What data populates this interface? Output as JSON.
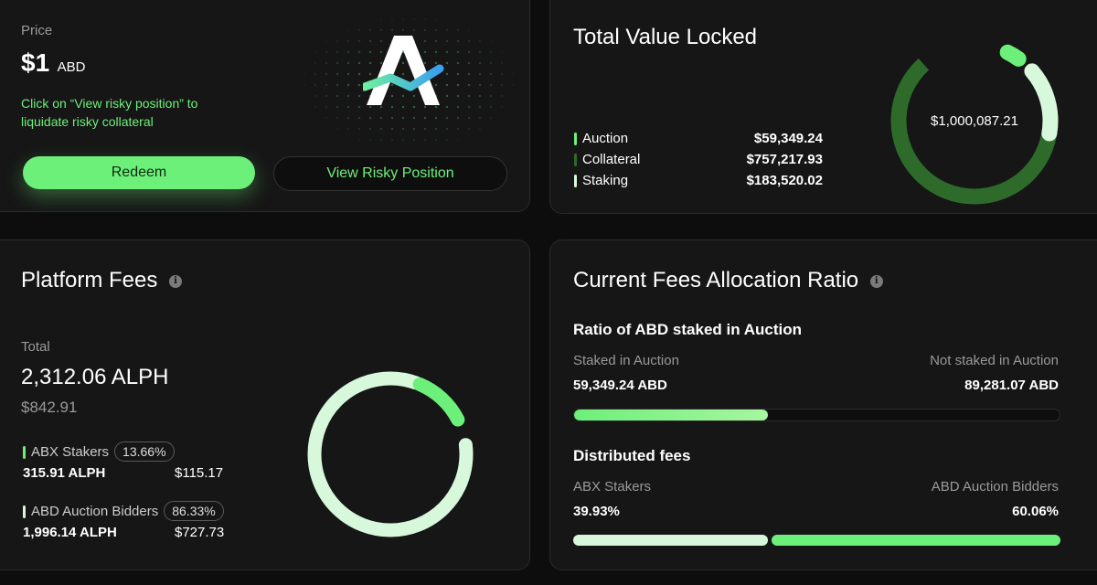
{
  "price_card": {
    "label": "Price",
    "value": "$1",
    "unit": "ABD",
    "hint": "Click on “View risky position” to liquidate risky collateral",
    "redeem_label": "Redeem",
    "view_risky_label": "View Risky Position",
    "logo_letter": "A"
  },
  "tvl": {
    "title": "Total Value Locked",
    "total": "$1,000,087.21",
    "items": [
      {
        "label": "Auction",
        "value": "$59,349.24",
        "color": "#6df07a"
      },
      {
        "label": "Collateral",
        "value": "$757,217.93",
        "color": "#2e6b2a"
      },
      {
        "label": "Staking",
        "value": "$183,520.02",
        "color": "#d8f8dc"
      }
    ]
  },
  "fees": {
    "title": "Platform Fees",
    "total_label": "Total",
    "total_value": "2,312.06 ALPH",
    "total_usd": "$842.91",
    "groups": [
      {
        "label": "ABX Stakers",
        "pct": "13.66%",
        "alph": "315.91 ALPH",
        "usd": "$115.17",
        "color": "#6df07a"
      },
      {
        "label": "ABD Auction Bidders",
        "pct": "86.33%",
        "alph": "1,996.14 ALPH",
        "usd": "$727.73",
        "color": "#d8f8dc"
      }
    ]
  },
  "allocation": {
    "title": "Current Fees Allocation Ratio",
    "ratio_title": "Ratio of ABD staked in Auction",
    "staked_label": "Staked in Auction",
    "staked_value": "59,349.24 ABD",
    "not_staked_label": "Not staked in Auction",
    "not_staked_value": "89,281.07 ABD",
    "staked_fraction": 0.399,
    "dist_title": "Distributed fees",
    "abx_label": "ABX Stakers",
    "abx_value": "39.93%",
    "abd_label": "ABD Auction Bidders",
    "abd_value": "60.06%",
    "abx_fraction": 0.3993
  },
  "colors": {
    "accent": "#6df07a",
    "dark_green": "#2e6b2a",
    "light_green": "#d8f8dc"
  }
}
